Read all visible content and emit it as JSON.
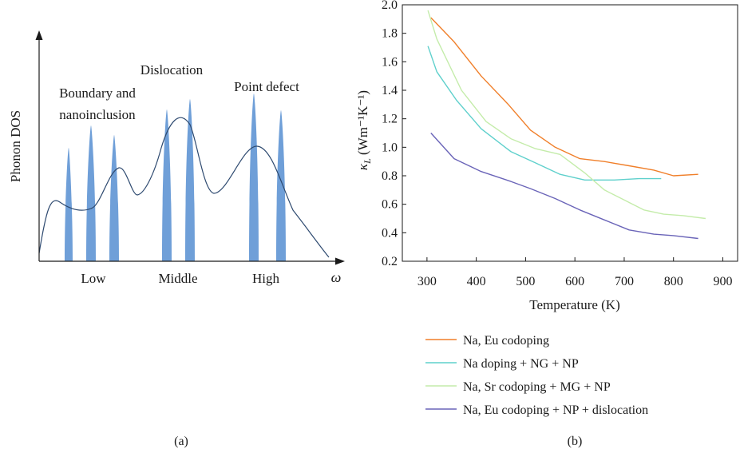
{
  "panel_a": {
    "ylabel": "Phonon DOS",
    "xlabel": "ω",
    "ticks": [
      "Low",
      "Middle",
      "High"
    ],
    "annotations": [
      "Boundary and",
      "nanoinclusion",
      "Dislocation",
      "Point defect"
    ],
    "caption": "(a)",
    "colors": {
      "peaks": "#6f9fd8",
      "curve": "#2e4a70",
      "axis": "#1a1a1a"
    }
  },
  "panel_b": {
    "caption": "(b)",
    "ylabel_main": "κ",
    "ylabel_sub": "L",
    "ylabel_unit": " (Wm⁻¹K⁻¹)",
    "xlabel": "Temperature (K)"
  },
  "chart_data": {
    "type": "line",
    "title": "",
    "xlabel": "Temperature (K)",
    "ylabel": "κL (Wm⁻¹K⁻¹)",
    "xlim": [
      250,
      930
    ],
    "ylim": [
      0.2,
      2.0
    ],
    "xticks": [
      300,
      400,
      500,
      600,
      700,
      800,
      900
    ],
    "yticks": [
      0.2,
      0.4,
      0.6,
      0.8,
      1.0,
      1.2,
      1.4,
      1.6,
      1.8,
      2.0
    ],
    "ytick_labels": [
      "0.2",
      "0.4",
      "0.6",
      "0.8",
      "1.0",
      "1.2",
      "1.4",
      "1.6",
      "1.8",
      "2.0"
    ],
    "legend_position": "bottom",
    "series": [
      {
        "name": "Na, Eu codoping",
        "color": "#f07f2a",
        "x": [
          308,
          355,
          410,
          465,
          510,
          560,
          610,
          660,
          710,
          760,
          800,
          850
        ],
        "y": [
          1.91,
          1.74,
          1.5,
          1.3,
          1.12,
          1.0,
          0.92,
          0.9,
          0.87,
          0.84,
          0.8,
          0.81
        ]
      },
      {
        "name": "Na doping + NG + NP",
        "color": "#5fd0cc",
        "x": [
          302,
          320,
          360,
          410,
          470,
          520,
          570,
          620,
          680,
          730,
          775
        ],
        "y": [
          1.71,
          1.53,
          1.33,
          1.13,
          0.97,
          0.89,
          0.81,
          0.77,
          0.77,
          0.78,
          0.78
        ]
      },
      {
        "name": "Na, Sr codoping + MG + NP",
        "color": "#c4ecaa",
        "x": [
          302,
          320,
          370,
          420,
          470,
          520,
          570,
          620,
          660,
          700,
          740,
          780,
          820,
          865
        ],
        "y": [
          1.96,
          1.76,
          1.4,
          1.18,
          1.06,
          0.99,
          0.95,
          0.82,
          0.7,
          0.63,
          0.56,
          0.53,
          0.52,
          0.5
        ]
      },
      {
        "name": "Na, Eu codoping + NP + dislocation",
        "color": "#6a64b8",
        "x": [
          308,
          355,
          410,
          470,
          510,
          560,
          610,
          660,
          710,
          760,
          800,
          850
        ],
        "y": [
          1.1,
          0.92,
          0.83,
          0.76,
          0.71,
          0.64,
          0.56,
          0.49,
          0.42,
          0.39,
          0.38,
          0.36
        ]
      }
    ]
  }
}
